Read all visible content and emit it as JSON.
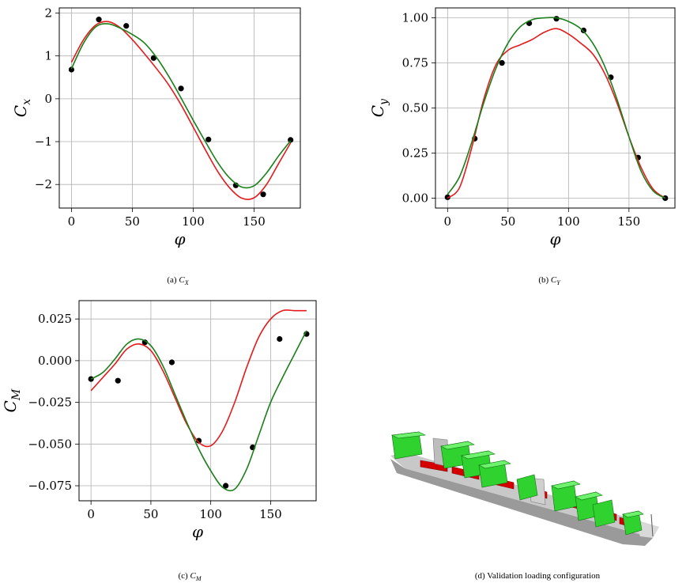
{
  "captions": {
    "a_prefix": "(a) ",
    "a_symbol": "C",
    "a_sub": "X",
    "b_prefix": "(b) ",
    "b_symbol": "C",
    "b_sub": "Y",
    "c_prefix": "(c) ",
    "c_symbol": "C",
    "c_sub": "M",
    "d_text": "(d) Validation loading configuration"
  },
  "colors": {
    "red": "#e41a1c",
    "green": "#1a7f1a",
    "points": "#000000",
    "grid": "#b0b0b0"
  },
  "chart_data": [
    {
      "type": "scatter",
      "title": "",
      "xlabel": "φ",
      "ylabel": "C_x",
      "xlim": [
        -10,
        188
      ],
      "ylim": [
        -2.55,
        2.12
      ],
      "xticks": [
        0,
        50,
        100,
        150
      ],
      "xtick_labels": [
        "0",
        "50",
        "100",
        "150"
      ],
      "yticks": [
        -2,
        -1,
        0,
        1,
        2
      ],
      "ytick_labels": [
        "−2",
        "−1",
        "0",
        "1",
        "2"
      ],
      "grid": true,
      "series": [
        {
          "kind": "points",
          "color_key": "points",
          "x": [
            0,
            22.5,
            45,
            67.5,
            90,
            112.5,
            135,
            157.5,
            180
          ],
          "y": [
            0.68,
            1.85,
            1.7,
            0.95,
            0.24,
            -0.95,
            -2.02,
            -2.23,
            -0.96
          ]
        },
        {
          "kind": "line",
          "color_key": "red",
          "x": [
            0,
            10,
            20,
            30,
            40,
            50,
            60,
            70,
            80,
            90,
            100,
            110,
            120,
            130,
            140,
            150,
            160,
            170,
            180
          ],
          "y": [
            0.85,
            1.38,
            1.72,
            1.8,
            1.66,
            1.38,
            1.05,
            0.7,
            0.32,
            -0.14,
            -0.66,
            -1.19,
            -1.69,
            -2.08,
            -2.32,
            -2.31,
            -2.01,
            -1.52,
            -1.03
          ]
        },
        {
          "kind": "line",
          "color_key": "green",
          "x": [
            0,
            10,
            20,
            30,
            40,
            50,
            60,
            70,
            80,
            90,
            100,
            110,
            120,
            130,
            140,
            150,
            160,
            170,
            180
          ],
          "y": [
            0.7,
            1.3,
            1.68,
            1.75,
            1.65,
            1.5,
            1.3,
            0.96,
            0.52,
            0.02,
            -0.5,
            -1.0,
            -1.48,
            -1.85,
            -2.06,
            -2.03,
            -1.74,
            -1.34,
            -0.98
          ]
        }
      ]
    },
    {
      "type": "scatter",
      "title": "",
      "xlabel": "φ",
      "ylabel": "C_y",
      "xlim": [
        -10,
        188
      ],
      "ylim": [
        -0.055,
        1.055
      ],
      "xticks": [
        0,
        50,
        100,
        150
      ],
      "xtick_labels": [
        "0",
        "50",
        "100",
        "150"
      ],
      "yticks": [
        0,
        0.25,
        0.5,
        0.75,
        1.0
      ],
      "ytick_labels": [
        "0.00",
        "0.25",
        "0.50",
        "0.75",
        "1.00"
      ],
      "grid": true,
      "series": [
        {
          "kind": "points",
          "color_key": "points",
          "x": [
            0,
            22.5,
            45,
            67.5,
            90,
            112.5,
            135,
            157.5,
            180
          ],
          "y": [
            0.005,
            0.33,
            0.75,
            0.97,
            0.995,
            0.93,
            0.67,
            0.225,
            0.0
          ]
        },
        {
          "kind": "line",
          "color_key": "red",
          "x": [
            0,
            10,
            20,
            30,
            40,
            50,
            60,
            70,
            80,
            90,
            100,
            110,
            120,
            130,
            140,
            150,
            160,
            170,
            180
          ],
          "y": [
            0.0,
            0.06,
            0.28,
            0.55,
            0.74,
            0.82,
            0.85,
            0.88,
            0.92,
            0.94,
            0.91,
            0.86,
            0.8,
            0.69,
            0.53,
            0.34,
            0.17,
            0.05,
            0.0
          ]
        },
        {
          "kind": "line",
          "color_key": "green",
          "x": [
            0,
            10,
            20,
            30,
            40,
            50,
            60,
            70,
            80,
            90,
            100,
            110,
            120,
            130,
            140,
            150,
            160,
            170,
            180
          ],
          "y": [
            0.02,
            0.12,
            0.31,
            0.53,
            0.72,
            0.86,
            0.95,
            0.99,
            1.0,
            1.0,
            0.98,
            0.94,
            0.86,
            0.73,
            0.55,
            0.34,
            0.15,
            0.04,
            0.0
          ]
        }
      ]
    },
    {
      "type": "scatter",
      "title": "",
      "xlabel": "φ",
      "ylabel": "C_M",
      "xlim": [
        -10,
        188
      ],
      "ylim": [
        -0.084,
        0.036
      ],
      "xticks": [
        0,
        50,
        100,
        150
      ],
      "xtick_labels": [
        "0",
        "50",
        "100",
        "150"
      ],
      "yticks": [
        -0.075,
        -0.05,
        -0.025,
        0,
        0.025
      ],
      "ytick_labels": [
        "−0.075",
        "−0.050",
        "−0.025",
        "0.000",
        "0.025"
      ],
      "grid": true,
      "series": [
        {
          "kind": "points",
          "color_key": "points",
          "x": [
            0,
            22.5,
            45,
            67.5,
            90,
            112.5,
            135,
            157.5,
            180
          ],
          "y": [
            -0.011,
            -0.012,
            0.011,
            -0.001,
            -0.048,
            -0.075,
            -0.052,
            0.013,
            0.016
          ]
        },
        {
          "kind": "line",
          "color_key": "red",
          "x": [
            0,
            10,
            20,
            30,
            40,
            50,
            60,
            70,
            80,
            90,
            100,
            110,
            120,
            130,
            140,
            150,
            160,
            170,
            180
          ],
          "y": [
            -0.018,
            -0.01,
            -0.002,
            0.007,
            0.01,
            0.006,
            -0.006,
            -0.022,
            -0.038,
            -0.049,
            -0.051,
            -0.042,
            -0.025,
            -0.004,
            0.014,
            0.025,
            0.03,
            0.03,
            0.03
          ]
        },
        {
          "kind": "line",
          "color_key": "green",
          "x": [
            0,
            10,
            20,
            30,
            40,
            50,
            60,
            70,
            80,
            90,
            100,
            110,
            120,
            130,
            140,
            150,
            160,
            170,
            180
          ],
          "y": [
            -0.011,
            -0.007,
            0.001,
            0.01,
            0.013,
            0.009,
            -0.003,
            -0.02,
            -0.037,
            -0.053,
            -0.066,
            -0.076,
            -0.077,
            -0.065,
            -0.045,
            -0.025,
            -0.01,
            0.004,
            0.018
          ]
        }
      ]
    }
  ]
}
